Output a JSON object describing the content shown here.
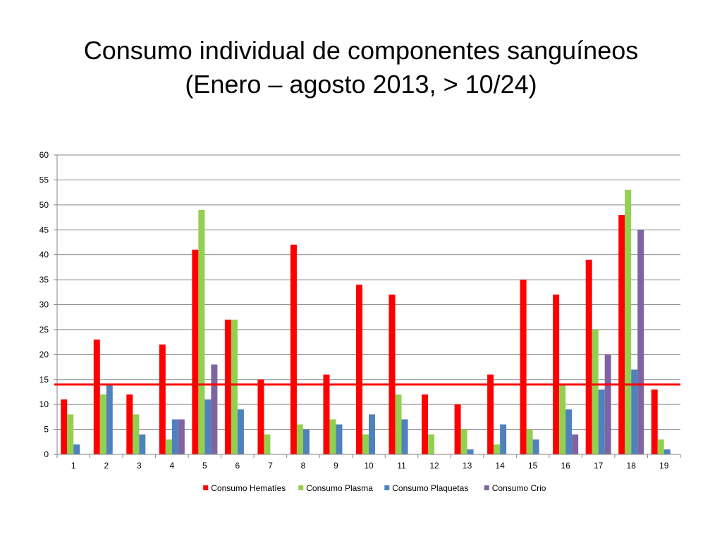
{
  "chart_data": {
    "type": "bar",
    "title": "Consumo individual de componentes sanguíneos",
    "subtitle": "(Enero – agosto 2013, > 10/24)",
    "xlabel": "",
    "ylabel": "",
    "ylim": [
      0,
      60
    ],
    "ytick_step": 5,
    "grid": true,
    "legend_position": "bottom",
    "categories": [
      "1",
      "2",
      "3",
      "4",
      "5",
      "6",
      "7",
      "8",
      "9",
      "10",
      "11",
      "12",
      "13",
      "14",
      "15",
      "16",
      "17",
      "18",
      "19"
    ],
    "series": [
      {
        "name": "Consumo Hematíes",
        "color": "#FF0000",
        "values": [
          11,
          23,
          12,
          22,
          41,
          27,
          15,
          42,
          16,
          34,
          32,
          12,
          10,
          16,
          35,
          32,
          39,
          48,
          13
        ]
      },
      {
        "name": "Consumo Plasma",
        "color": "#92D050",
        "values": [
          8,
          12,
          8,
          3,
          49,
          27,
          4,
          6,
          7,
          4,
          12,
          4,
          5,
          2,
          5,
          14,
          25,
          53,
          3
        ]
      },
      {
        "name": "Consumo Plaquetas",
        "color": "#4F81BD",
        "values": [
          2,
          14,
          4,
          7,
          11,
          9,
          0,
          5,
          6,
          8,
          7,
          0,
          1,
          6,
          3,
          9,
          13,
          17,
          1
        ]
      },
      {
        "name": "Consumo Crio",
        "color": "#8064A2",
        "values": [
          0,
          0,
          0,
          7,
          18,
          0,
          0,
          0,
          0,
          0,
          0,
          0,
          0,
          0,
          0,
          4,
          20,
          45,
          0
        ]
      }
    ],
    "reference_line": {
      "value": 14,
      "color": "#FF0000"
    }
  }
}
